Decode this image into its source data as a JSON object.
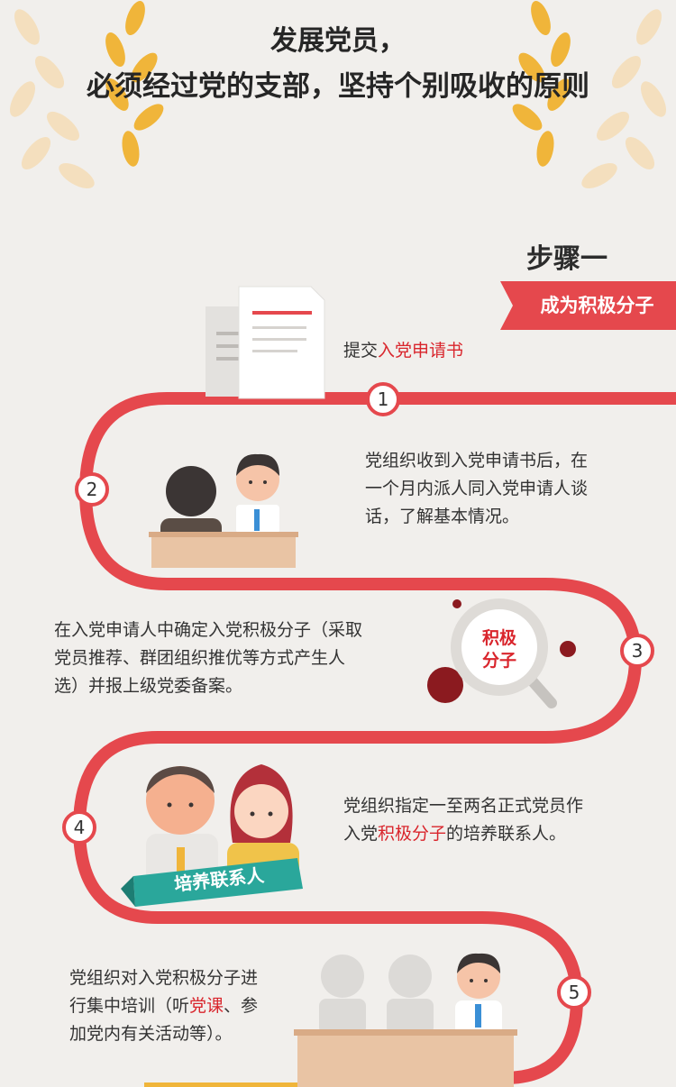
{
  "title": {
    "line1": "发展党员，",
    "line2": "必须经过党的支部，坚持个别吸收的原则"
  },
  "step": {
    "heading": "步骤一",
    "ribbon": "成为积极分子"
  },
  "items": [
    {
      "number": "1",
      "text_prefix": "提交",
      "text_highlight": "入党申请书"
    },
    {
      "number": "2",
      "lines": [
        "党组织收到入党申请书后，在",
        "一个月内派人同入党申请人谈",
        "话，了解基本情况。"
      ]
    },
    {
      "number": "3",
      "lines": [
        "在入党申请人中确定入党积极分子（采取",
        "党员推荐、群团组织推优等方式产生人",
        "选）并报上级党委备案。"
      ],
      "magnifier_line1": "积极",
      "magnifier_line2": "分子"
    },
    {
      "number": "4",
      "line1": "党组织指定一至两名正式党员作",
      "line2_prefix": "入党",
      "line2_highlight": "积极分子",
      "line2_suffix": "的培养联系人。",
      "banner": "培养联系人"
    },
    {
      "number": "5",
      "line1": "党组织对入党积极分子进",
      "line2_prefix": "行集中培训（听",
      "line2_highlight": "党课",
      "line2_suffix": "、参",
      "line3": "加党内有关活动等）。"
    }
  ],
  "colors": {
    "accent": "#e5484d",
    "highlight_text": "#d9252c",
    "background": "#f1efec",
    "laurel": "#f0b53a",
    "banner": "#2aa79b"
  }
}
